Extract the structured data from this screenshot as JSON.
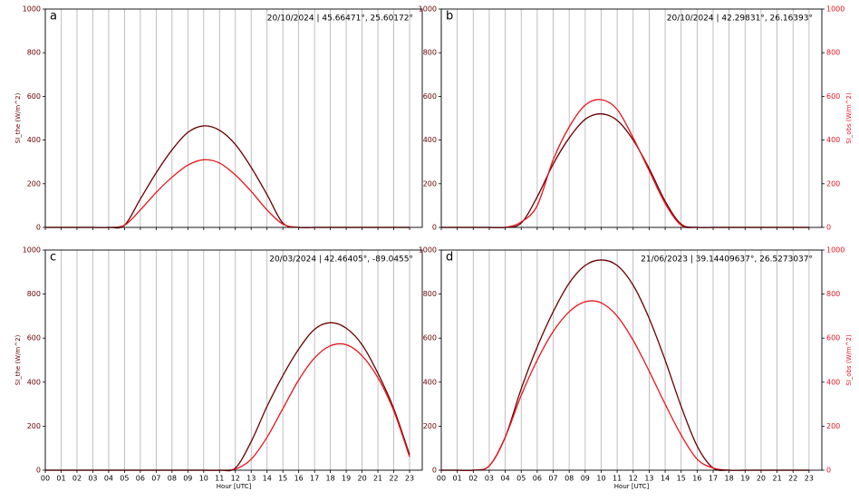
{
  "chart_data": [
    {
      "type": "line",
      "title": "a",
      "annotation": "20/10/2024 | 45.66471°, 25.60172°",
      "ylabel": "SI_the (W/m^2)",
      "x": [
        0,
        1,
        2,
        3,
        4,
        5,
        6,
        7,
        8,
        9,
        10,
        11,
        12,
        13,
        14,
        15,
        16,
        17,
        18,
        19,
        20,
        21,
        22,
        23
      ],
      "series": [
        {
          "color": "#6b0000",
          "values": [
            0,
            0,
            0,
            0,
            0,
            10,
            130,
            250,
            355,
            435,
            465,
            445,
            380,
            275,
            150,
            20,
            0,
            0,
            0,
            0,
            0,
            0,
            0,
            0
          ]
        },
        {
          "color": "#e8141e",
          "values": [
            0,
            0,
            0,
            0,
            0,
            10,
            80,
            160,
            230,
            285,
            310,
            295,
            240,
            165,
            80,
            15,
            0,
            0,
            0,
            0,
            0,
            0,
            0,
            0
          ]
        }
      ],
      "xlim": [
        0,
        23.8
      ],
      "xticks": [
        0,
        1,
        2,
        3,
        4,
        5,
        6,
        7,
        8,
        9,
        10,
        11,
        12,
        13,
        14,
        15,
        16,
        17,
        18,
        19,
        20,
        21,
        22,
        23
      ],
      "xtick_labels": false,
      "ylim": [
        0,
        1000
      ],
      "yticks": [
        0,
        200,
        400,
        600,
        800,
        1000
      ],
      "grid": "x"
    },
    {
      "type": "line",
      "title": "b",
      "annotation": "20/10/2024 | 42.29831°, 26.16393°",
      "y2label": "SI_obs (W/m^2)",
      "x": [
        0,
        1,
        2,
        3,
        4,
        5,
        6,
        7,
        8,
        9,
        10,
        11,
        12,
        13,
        14,
        15,
        16,
        17,
        18,
        19,
        20,
        21,
        22,
        23
      ],
      "series": [
        {
          "color": "#6b0000",
          "values": [
            0,
            0,
            0,
            0,
            0,
            20,
            140,
            290,
            410,
            495,
            520,
            490,
            400,
            270,
            120,
            15,
            0,
            0,
            0,
            0,
            0,
            0,
            0,
            0
          ]
        },
        {
          "color": "#e8141e",
          "axis": "y2",
          "values": [
            0,
            0,
            0,
            0,
            0,
            25,
            100,
            310,
            460,
            560,
            585,
            540,
            410,
            260,
            110,
            10,
            0,
            0,
            0,
            0,
            0,
            0,
            0,
            0
          ]
        }
      ],
      "xlim": [
        0,
        23.8
      ],
      "xticks": [
        0,
        1,
        2,
        3,
        4,
        5,
        6,
        7,
        8,
        9,
        10,
        11,
        12,
        13,
        14,
        15,
        16,
        17,
        18,
        19,
        20,
        21,
        22,
        23
      ],
      "xtick_labels": false,
      "ylim": [
        0,
        1000
      ],
      "yticks": [
        0,
        200,
        400,
        600,
        800,
        1000
      ],
      "y2lim": [
        0,
        1000
      ],
      "y2ticks": [
        0,
        200,
        400,
        600,
        800,
        1000
      ],
      "grid": "x"
    },
    {
      "type": "line",
      "title": "c",
      "annotation": "20/03/2024 | 42.46405°, -89.0455°",
      "ylabel": "SI_the (W/m^2)",
      "xlabel": "Hour [UTC]",
      "x": [
        0,
        1,
        2,
        3,
        4,
        5,
        6,
        7,
        8,
        9,
        10,
        11,
        12,
        13,
        14,
        15,
        16,
        17,
        18,
        19,
        20,
        21,
        22,
        23
      ],
      "series": [
        {
          "color": "#6b0000",
          "values": [
            0,
            0,
            0,
            0,
            0,
            0,
            0,
            0,
            0,
            0,
            0,
            0,
            10,
            130,
            290,
            430,
            550,
            640,
            670,
            645,
            570,
            440,
            280,
            70
          ]
        },
        {
          "color": "#e8141e",
          "values": [
            0,
            0,
            0,
            0,
            0,
            0,
            0,
            0,
            0,
            0,
            0,
            0,
            5,
            50,
            150,
            280,
            410,
            510,
            565,
            570,
            520,
            420,
            270,
            60
          ]
        }
      ],
      "xlim": [
        0,
        23.8
      ],
      "xticks": [
        {
          "value": 0,
          "label": "00"
        },
        {
          "value": 1,
          "label": "01"
        },
        {
          "value": 2,
          "label": "02"
        },
        {
          "value": 3,
          "label": "03"
        },
        {
          "value": 4,
          "label": "04"
        },
        {
          "value": 5,
          "label": "05"
        },
        {
          "value": 6,
          "label": "06"
        },
        {
          "value": 7,
          "label": "07"
        },
        {
          "value": 8,
          "label": "08"
        },
        {
          "value": 9,
          "label": "09"
        },
        {
          "value": 10,
          "label": "10"
        },
        {
          "value": 11,
          "label": "11"
        },
        {
          "value": 12,
          "label": "12"
        },
        {
          "value": 13,
          "label": "13"
        },
        {
          "value": 14,
          "label": "14"
        },
        {
          "value": 15,
          "label": "15"
        },
        {
          "value": 16,
          "label": "16"
        },
        {
          "value": 17,
          "label": "17"
        },
        {
          "value": 18,
          "label": "18"
        },
        {
          "value": 19,
          "label": "19"
        },
        {
          "value": 20,
          "label": "20"
        },
        {
          "value": 21,
          "label": "21"
        },
        {
          "value": 22,
          "label": "22"
        },
        {
          "value": 23,
          "label": "23"
        }
      ],
      "ylim": [
        0,
        1000
      ],
      "yticks": [
        0,
        200,
        400,
        600,
        800,
        1000
      ],
      "grid": "x"
    },
    {
      "type": "line",
      "title": "d",
      "annotation": "21/06/2023 | 39.14409637°, 26.5273037°",
      "y2label": "SI_obs (W/m^2)",
      "xlabel": "Hour [UTC]",
      "x": [
        0,
        1,
        2,
        3,
        4,
        5,
        6,
        7,
        8,
        9,
        10,
        11,
        12,
        13,
        14,
        15,
        16,
        17,
        18,
        19,
        20,
        21,
        22,
        23
      ],
      "series": [
        {
          "color": "#6b0000",
          "values": [
            0,
            0,
            0,
            20,
            150,
            370,
            560,
            720,
            850,
            930,
            955,
            930,
            840,
            690,
            500,
            290,
            110,
            10,
            0,
            0,
            0,
            0,
            0,
            0
          ]
        },
        {
          "color": "#e8141e",
          "axis": "y2",
          "values": [
            0,
            0,
            0,
            20,
            150,
            340,
            500,
            630,
            720,
            765,
            760,
            700,
            590,
            450,
            300,
            160,
            50,
            10,
            0,
            0,
            0,
            0,
            0,
            0
          ]
        }
      ],
      "xlim": [
        0,
        23.8
      ],
      "xticks": [
        {
          "value": 0,
          "label": "00"
        },
        {
          "value": 1,
          "label": "01"
        },
        {
          "value": 2,
          "label": "02"
        },
        {
          "value": 3,
          "label": "03"
        },
        {
          "value": 4,
          "label": "04"
        },
        {
          "value": 5,
          "label": "05"
        },
        {
          "value": 6,
          "label": "06"
        },
        {
          "value": 7,
          "label": "07"
        },
        {
          "value": 8,
          "label": "08"
        },
        {
          "value": 9,
          "label": "09"
        },
        {
          "value": 10,
          "label": "10"
        },
        {
          "value": 11,
          "label": "11"
        },
        {
          "value": 12,
          "label": "12"
        },
        {
          "value": 13,
          "label": "13"
        },
        {
          "value": 14,
          "label": "14"
        },
        {
          "value": 15,
          "label": "15"
        },
        {
          "value": 16,
          "label": "16"
        },
        {
          "value": 17,
          "label": "17"
        },
        {
          "value": 18,
          "label": "18"
        },
        {
          "value": 19,
          "label": "19"
        },
        {
          "value": 20,
          "label": "20"
        },
        {
          "value": 21,
          "label": "21"
        },
        {
          "value": 22,
          "label": "22"
        },
        {
          "value": 23,
          "label": "23"
        }
      ],
      "ylim": [
        0,
        1000
      ],
      "yticks": [
        0,
        200,
        400,
        600,
        800,
        1000
      ],
      "y2lim": [
        0,
        1000
      ],
      "y2ticks": [
        0,
        200,
        400,
        600,
        800,
        1000
      ],
      "grid": "x"
    }
  ]
}
